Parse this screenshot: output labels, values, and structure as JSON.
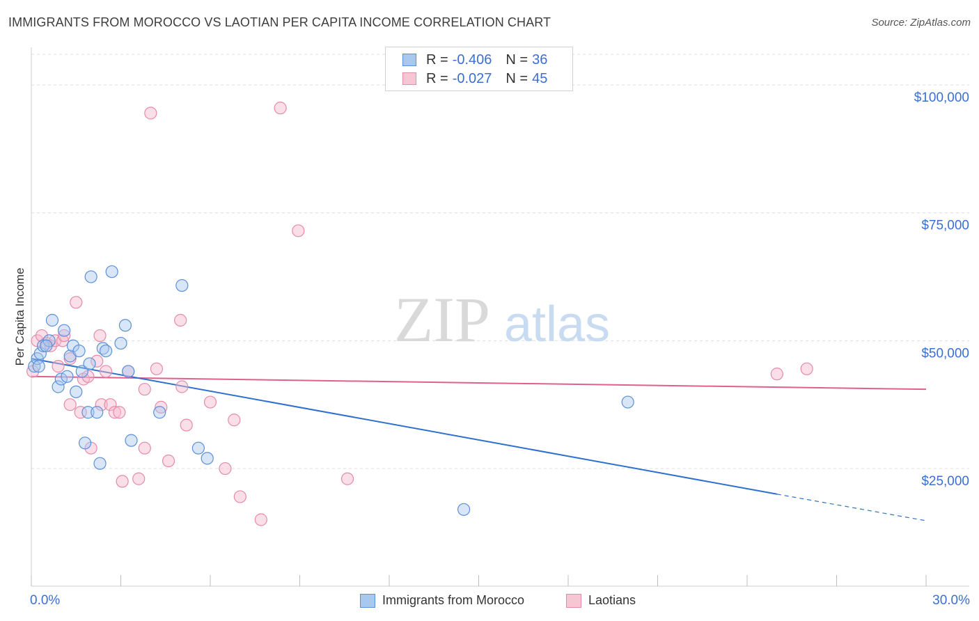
{
  "title": "IMMIGRANTS FROM MOROCCO VS LAOTIAN PER CAPITA INCOME CORRELATION CHART",
  "source": "Source: ZipAtlas.com",
  "watermark": {
    "zip": "ZIP",
    "atlas": "atlas"
  },
  "legend": {
    "series1": {
      "r_label": "R =",
      "r_value": "-0.406",
      "n_label": "N =",
      "n_value": "36"
    },
    "series2": {
      "r_label": "R =",
      "r_value": "-0.027",
      "n_label": "N =",
      "n_value": "45"
    }
  },
  "colors": {
    "blue_fill": "#a9c8ee",
    "blue_stroke": "#5b8fd8",
    "blue_line": "#2e6fd0",
    "pink_fill": "#f7b9cc",
    "pink_stroke": "#e58aa8",
    "pink_line": "#e0608c",
    "axis_label": "#3a6fd1",
    "grid": "#dcdcdc"
  },
  "chart_data": {
    "type": "scatter",
    "title": "IMMIGRANTS FROM MOROCCO VS LAOTIAN PER CAPITA INCOME CORRELATION CHART",
    "xlabel": "",
    "ylabel": "Per Capita Income",
    "xlim": [
      0,
      30
    ],
    "ylim": [
      2000,
      106000
    ],
    "x_tick_labels": [
      "0.0%",
      "30.0%"
    ],
    "y_ticks": [
      25000,
      50000,
      75000,
      100000
    ],
    "y_tick_labels": [
      "$25,000",
      "$50,000",
      "$75,000",
      "$100,000"
    ],
    "series": [
      {
        "name": "Immigrants from Morocco",
        "color": "blue",
        "points": [
          [
            0.1,
            45000
          ],
          [
            0.2,
            46500
          ],
          [
            0.3,
            47500
          ],
          [
            0.4,
            49000
          ],
          [
            0.6,
            50000
          ],
          [
            0.7,
            54000
          ],
          [
            0.9,
            41000
          ],
          [
            1.0,
            42500
          ],
          [
            1.1,
            52000
          ],
          [
            1.2,
            43000
          ],
          [
            1.3,
            47000
          ],
          [
            1.4,
            49000
          ],
          [
            1.5,
            40000
          ],
          [
            1.6,
            48000
          ],
          [
            1.7,
            44000
          ],
          [
            1.8,
            30000
          ],
          [
            1.9,
            36000
          ],
          [
            1.95,
            45500
          ],
          [
            2.0,
            62500
          ],
          [
            2.2,
            36000
          ],
          [
            2.3,
            26000
          ],
          [
            2.4,
            48500
          ],
          [
            2.5,
            48000
          ],
          [
            2.7,
            63500
          ],
          [
            3.0,
            49500
          ],
          [
            3.15,
            53000
          ],
          [
            3.25,
            44000
          ],
          [
            3.35,
            30500
          ],
          [
            4.3,
            36000
          ],
          [
            5.05,
            60800
          ],
          [
            5.6,
            29000
          ],
          [
            5.9,
            27000
          ],
          [
            14.5,
            17000
          ],
          [
            20.0,
            38000
          ],
          [
            0.25,
            45000
          ],
          [
            0.5,
            49000
          ]
        ]
      },
      {
        "name": "Laotians",
        "color": "pink",
        "points": [
          [
            0.05,
            44000
          ],
          [
            0.2,
            50000
          ],
          [
            0.35,
            51000
          ],
          [
            0.5,
            49500
          ],
          [
            0.65,
            49000
          ],
          [
            0.8,
            50000
          ],
          [
            0.9,
            45000
          ],
          [
            1.05,
            50000
          ],
          [
            1.1,
            51000
          ],
          [
            1.3,
            46500
          ],
          [
            1.3,
            37500
          ],
          [
            1.5,
            57500
          ],
          [
            1.65,
            36000
          ],
          [
            1.75,
            42500
          ],
          [
            1.9,
            43000
          ],
          [
            2.0,
            29000
          ],
          [
            2.2,
            46000
          ],
          [
            2.3,
            51000
          ],
          [
            2.35,
            37500
          ],
          [
            2.5,
            44000
          ],
          [
            2.65,
            37500
          ],
          [
            2.8,
            36000
          ],
          [
            2.95,
            36000
          ],
          [
            3.05,
            22500
          ],
          [
            3.25,
            44000
          ],
          [
            3.6,
            23000
          ],
          [
            3.8,
            29000
          ],
          [
            3.8,
            40500
          ],
          [
            4.0,
            94500
          ],
          [
            4.2,
            44500
          ],
          [
            4.35,
            37000
          ],
          [
            4.6,
            26500
          ],
          [
            5.0,
            54000
          ],
          [
            5.05,
            41000
          ],
          [
            5.2,
            33500
          ],
          [
            6.0,
            38000
          ],
          [
            6.5,
            25000
          ],
          [
            6.8,
            34500
          ],
          [
            7.0,
            19500
          ],
          [
            7.7,
            15000
          ],
          [
            8.35,
            95500
          ],
          [
            8.95,
            71500
          ],
          [
            10.6,
            23000
          ],
          [
            25.0,
            43500
          ],
          [
            26.0,
            44500
          ]
        ]
      }
    ],
    "trendlines": [
      {
        "series": "Immigrants from Morocco",
        "x_start": 0,
        "y_start": 46500,
        "x_solid_end": 25.0,
        "y_solid_end": 20000,
        "x_end": 30,
        "y_end": 14800
      },
      {
        "series": "Laotians",
        "x_start": 0,
        "y_start": 43000,
        "x_end": 30,
        "y_end": 40500
      }
    ]
  },
  "bottom_legend": {
    "series1": "Immigrants from Morocco",
    "series2": "Laotians"
  }
}
